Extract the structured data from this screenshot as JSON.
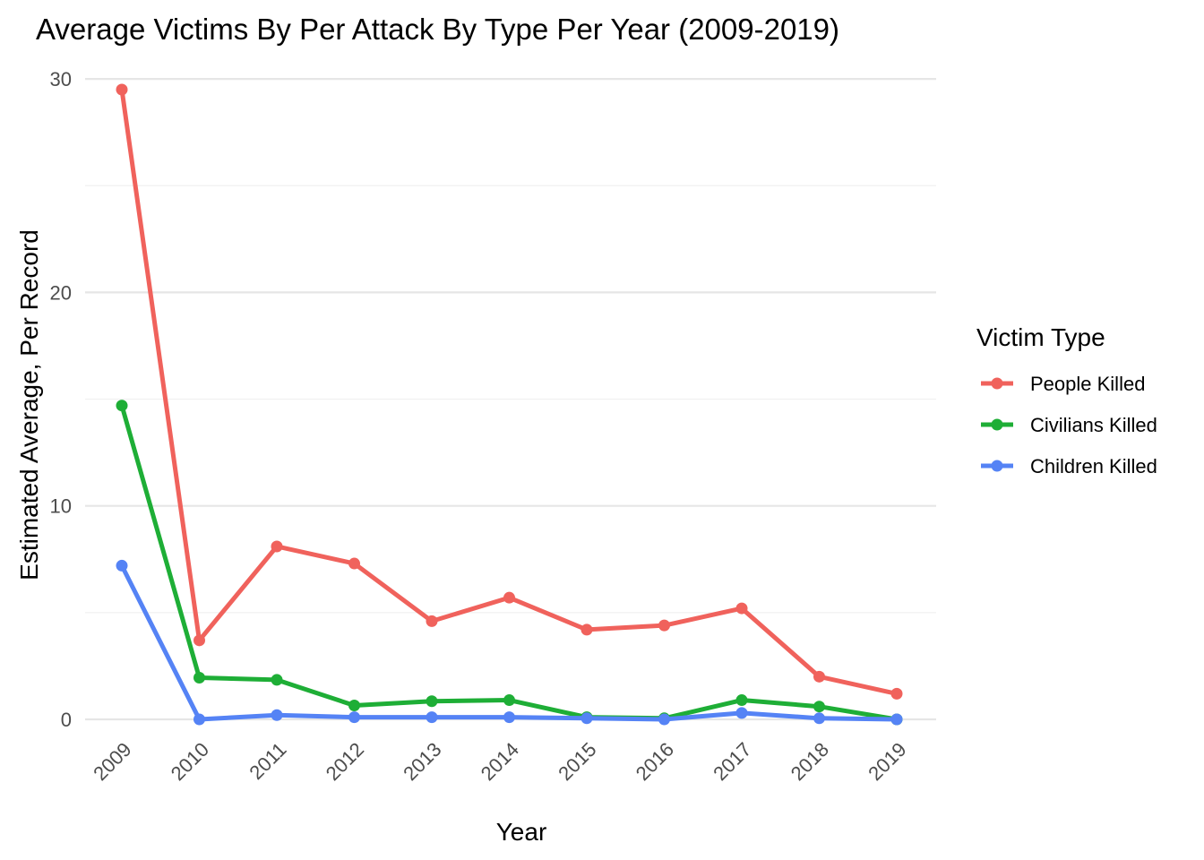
{
  "chart_data": {
    "type": "line",
    "title": "Average Victims By Per Attack By Type Per Year (2009-2019)",
    "xlabel": "Year",
    "ylabel": "Estimated Average, Per Record",
    "categories": [
      "2009",
      "2010",
      "2011",
      "2012",
      "2013",
      "2014",
      "2015",
      "2016",
      "2017",
      "2018",
      "2019"
    ],
    "ylim": [
      -1.5,
      30.5
    ],
    "yticks": [
      "0",
      "10",
      "20",
      "30"
    ],
    "grid": true,
    "legend": {
      "title": "Victim Type",
      "placement": "right"
    },
    "series": [
      {
        "name": "People Killed",
        "color": "#F0625C",
        "values": [
          29.5,
          3.7,
          8.1,
          7.3,
          4.6,
          5.7,
          4.2,
          4.4,
          5.2,
          2.0,
          1.2
        ]
      },
      {
        "name": "Civilians Killed",
        "color": "#1EAE36",
        "values": [
          14.7,
          1.95,
          1.85,
          0.65,
          0.85,
          0.9,
          0.1,
          0.05,
          0.9,
          0.6,
          0.0
        ]
      },
      {
        "name": "Children Killed",
        "color": "#5583F5",
        "values": [
          7.2,
          0.0,
          0.2,
          0.1,
          0.1,
          0.1,
          0.05,
          0.0,
          0.3,
          0.05,
          0.0
        ]
      }
    ]
  }
}
